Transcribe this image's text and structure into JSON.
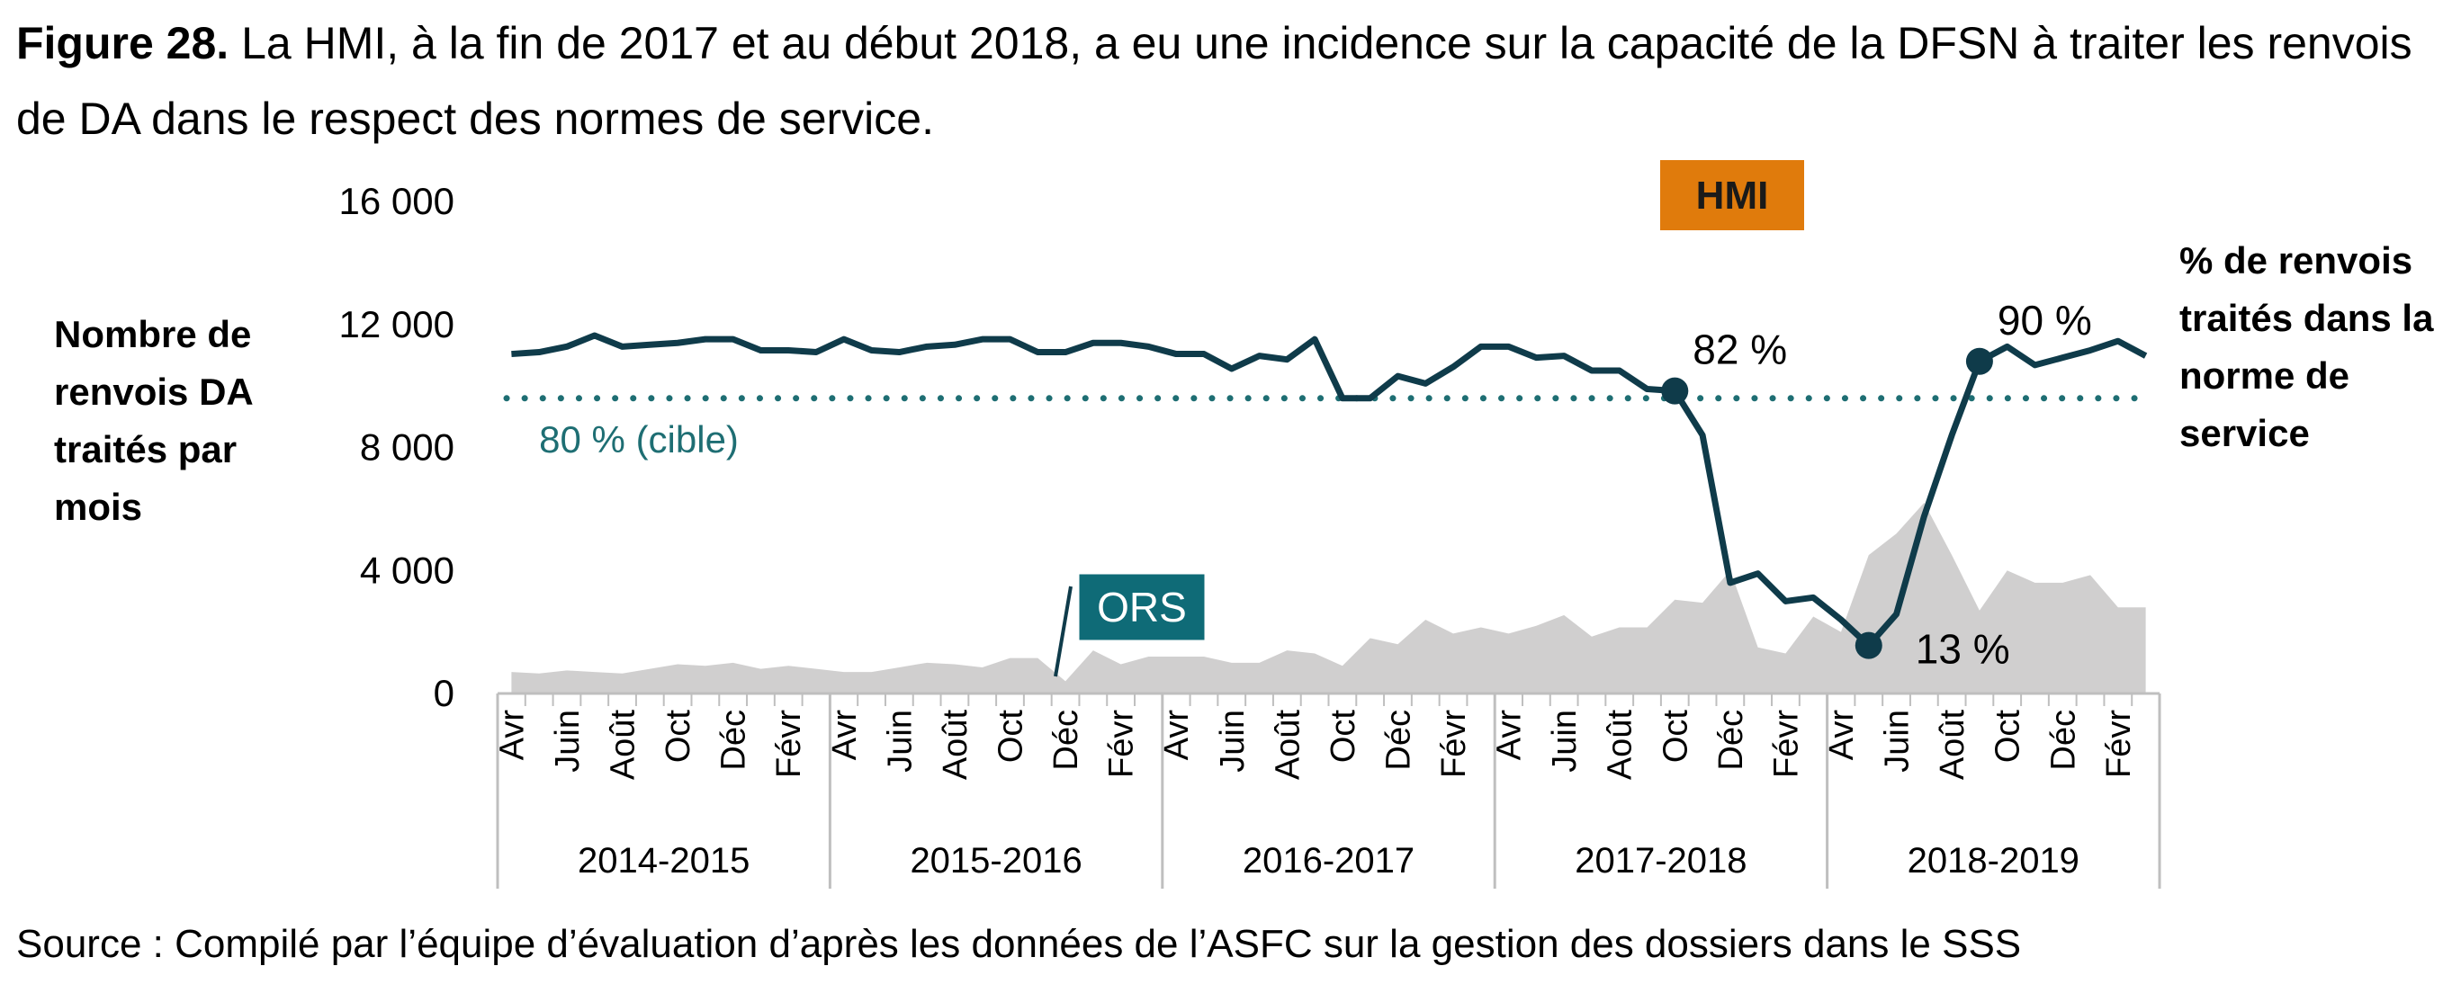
{
  "title": {
    "prefix": "Figure 28.",
    "text": " La HMI, à la fin de 2017 et au début 2018, a eu une incidence sur la capacité de la DFSN à traiter les renvois de DA dans le respect des normes de service."
  },
  "source": "Source : Compilé par l’équipe d’évaluation d’après les données de l’ASFC sur la gestion des dossiers dans le SSS",
  "chart_data": {
    "type": "area",
    "ylabel": "Nombre de renvois DA traités par mois",
    "y2label": "% de renvois traités dans la norme de service",
    "ylim": [
      0,
      16000
    ],
    "y_ticks": [
      "16 000",
      "12 000",
      "8 000",
      "4 000",
      "0"
    ],
    "y_tick_values": [
      16000,
      12000,
      8000,
      4000,
      0
    ],
    "y2lim": [
      0,
      1.3333
    ],
    "grid": false,
    "x_tick_labels": [
      "Avr",
      "Juin",
      "Août",
      "Oct",
      "Déc",
      "Févr"
    ],
    "fiscal_years": [
      "2014-2015",
      "2015-2016",
      "2016-2017",
      "2017-2018",
      "2018-2019"
    ],
    "months_per_year": 12,
    "series": [
      {
        "name": "Nombre de renvois DA traités par mois",
        "kind": "area",
        "color": "#d0cfcf",
        "values": [
          700,
          650,
          750,
          700,
          650,
          800,
          950,
          900,
          1000,
          800,
          900,
          800,
          700,
          700,
          850,
          1000,
          950,
          850,
          1150,
          1150,
          400,
          1400,
          950,
          1200,
          1200,
          1200,
          1000,
          1000,
          1400,
          1300,
          900,
          1800,
          1600,
          2400,
          1950,
          2150,
          1950,
          2200,
          2550,
          1850,
          2150,
          2150,
          3050,
          2950,
          4000,
          1500,
          1300,
          2500,
          2000,
          4500,
          5200,
          6200,
          4500,
          2700,
          4000,
          3600,
          3600,
          3850,
          2800,
          2800
        ]
      },
      {
        "name": "% de renvois traités dans la norme de service",
        "kind": "line",
        "color": "#0f3b4a",
        "values": [
          0.92,
          0.925,
          0.94,
          0.97,
          0.94,
          0.945,
          0.95,
          0.96,
          0.96,
          0.93,
          0.93,
          0.925,
          0.96,
          0.93,
          0.925,
          0.94,
          0.945,
          0.96,
          0.96,
          0.925,
          0.925,
          0.95,
          0.95,
          0.94,
          0.92,
          0.92,
          0.88,
          0.915,
          0.905,
          0.96,
          0.8,
          0.8,
          0.86,
          0.84,
          0.885,
          0.94,
          0.94,
          0.91,
          0.915,
          0.875,
          0.875,
          0.825,
          0.82,
          0.7,
          0.3,
          0.325,
          0.25,
          0.26,
          0.2,
          0.13,
          0.215,
          0.48,
          0.7,
          0.9,
          0.94,
          0.89,
          0.91,
          0.93,
          0.955,
          0.915
        ]
      },
      {
        "name": "80 % (cible)",
        "kind": "target",
        "color": "#1e6e73",
        "value": 0.8
      }
    ],
    "annotations": {
      "target_label": "80 % (cible)",
      "pct_82": "82 %",
      "pct_13": "13 %",
      "pct_90": "90 %",
      "hmi": "HMI",
      "ors": "ORS"
    },
    "highlight_points": [
      42,
      49,
      53
    ],
    "colors": {
      "line": "#0f3b4a",
      "area": "#d0cfcf",
      "target": "#1e6e73",
      "hmi": "#e07b0c",
      "ors": "#0f6b77"
    }
  }
}
